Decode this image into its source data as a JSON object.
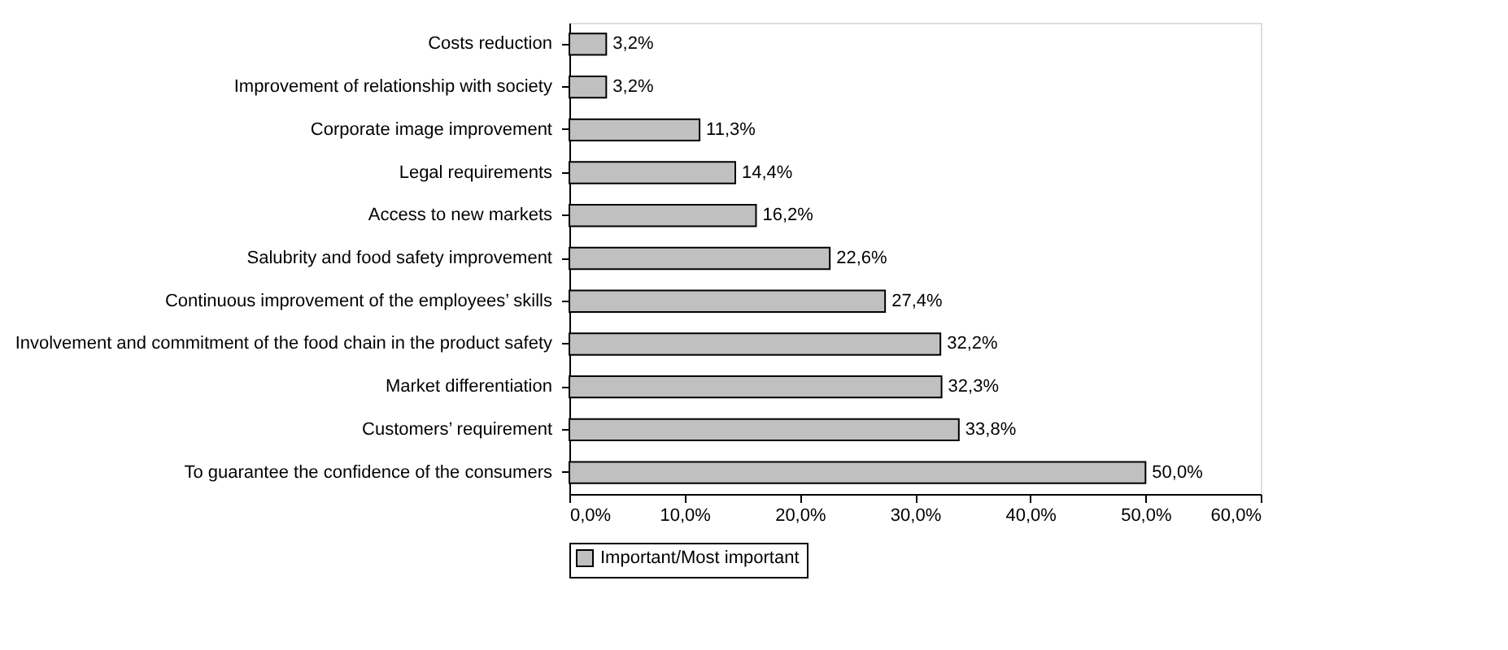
{
  "chart_data": {
    "type": "bar",
    "orientation": "horizontal",
    "categories": [
      "Costs reduction",
      "Improvement of  relationship with  society",
      "Corporate image improvement",
      "Legal requirements",
      "Access to new markets",
      "Salubrity and food safety improvement",
      "Continuous improvement of the employees’ skills",
      "Involvement and commitment of the food chain in the product safety",
      "Market differentiation",
      "Customers’ requirement",
      "To guarantee the confidence of the consumers"
    ],
    "series": [
      {
        "name": "Important/Most important",
        "color": "#c0c0c0",
        "values": [
          3.2,
          3.2,
          11.3,
          14.4,
          16.2,
          22.6,
          27.4,
          32.2,
          32.3,
          33.8,
          50.0
        ],
        "value_labels": [
          "3,2%",
          "3,2%",
          "11,3%",
          "14,4%",
          "16,2%",
          "22,6%",
          "27,4%",
          "32,2%",
          "32,3%",
          "33,8%",
          "50,0%"
        ]
      }
    ],
    "xlim": [
      0,
      60
    ],
    "xticks": [
      {
        "value": 0,
        "label": "0,0%"
      },
      {
        "value": 10,
        "label": "10,0%"
      },
      {
        "value": 20,
        "label": "20,0%"
      },
      {
        "value": 30,
        "label": "30,0%"
      },
      {
        "value": 40,
        "label": "40,0%"
      },
      {
        "value": 50,
        "label": "50,0%"
      },
      {
        "value": 60,
        "label": "60,0%"
      }
    ],
    "grid": false,
    "legend": "bottom"
  }
}
